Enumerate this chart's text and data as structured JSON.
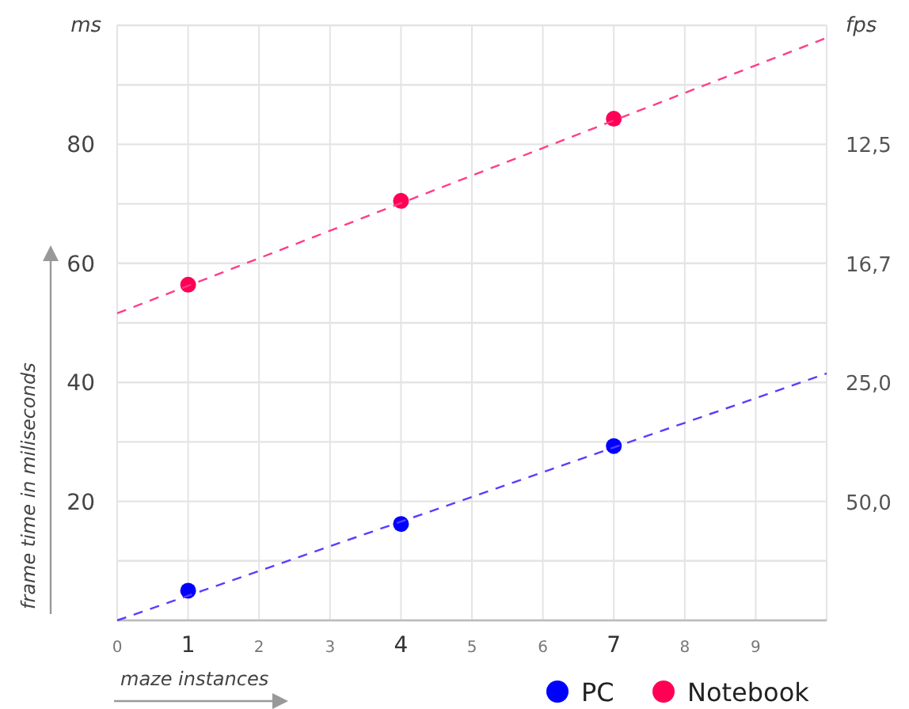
{
  "chart_data": {
    "type": "scatter",
    "xlabel": "maze instances",
    "ylabel": "frame time in miliseconds",
    "y2label": "fps",
    "annotations": [
      "ms",
      "50,0",
      "25,0",
      "16,7",
      "12,5"
    ],
    "xlim": [
      0,
      10
    ],
    "xticks": [
      0,
      1,
      2,
      3,
      4,
      5,
      6,
      7,
      8,
      9
    ],
    "ylim": [
      0,
      100
    ],
    "yticks": [
      {
        "value": 0,
        "label": null
      },
      {
        "value": 10,
        "label": null
      },
      20,
      {
        "value": 30,
        "label": null
      },
      40,
      {
        "value": 50,
        "label": null
      },
      60,
      {
        "value": 70,
        "label": null
      },
      80,
      {
        "value": 90,
        "label": null
      },
      {
        "value": 100,
        "label": null
      }
    ],
    "grid": true,
    "legend": "bottom right",
    "marker": "circle",
    "series": [
      {
        "name": "PC",
        "color": "#0000ff",
        "x": [
          1,
          4,
          7
        ],
        "values": [
          5,
          16.2,
          29.3
        ]
      },
      {
        "name": "Notebook",
        "color": "#ff0055",
        "x": [
          1,
          4,
          7
        ],
        "values": [
          56.4,
          70.5,
          84.3
        ]
      },
      {
        "type": "line",
        "color": "#5a3cff",
        "x": [
          0,
          10
        ],
        "values": [
          0,
          41.5
        ],
        "line_style": "dashed",
        "marker": "none"
      },
      {
        "type": "line",
        "color": "#ff3c8a",
        "x": [
          0,
          10
        ],
        "values": [
          51.6,
          97.9
        ],
        "line_style": "dashed",
        "marker": "none"
      }
    ]
  }
}
